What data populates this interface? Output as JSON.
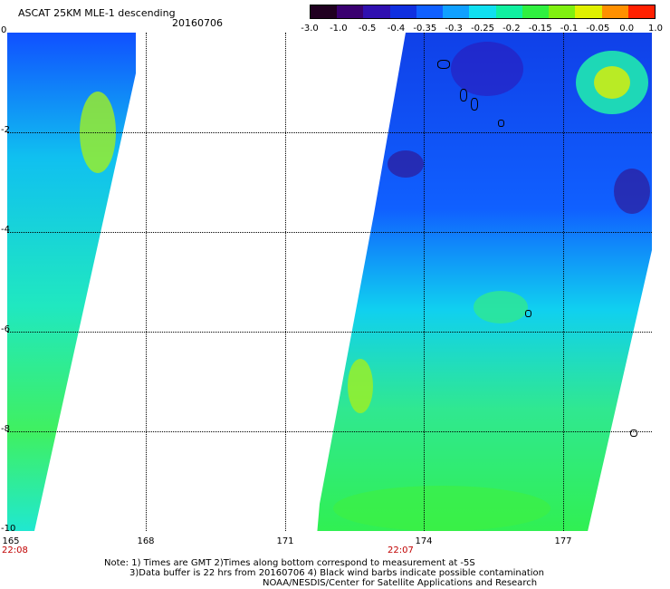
{
  "header": {
    "title": "ASCAT 25KM MLE-1 descending",
    "date": "20160706"
  },
  "colorbar": {
    "labels": [
      "-3.0",
      "-1.0",
      "-0.5",
      "-0.4",
      "-0.35",
      "-0.3",
      "-0.25",
      "-0.2",
      "-0.15",
      "-0.1",
      "-0.05",
      "0.0",
      "1.0"
    ],
    "colors": [
      "#200020",
      "#3a0070",
      "#3010b0",
      "#1030e0",
      "#1060ff",
      "#10a0ff",
      "#10e0f0",
      "#10f0a0",
      "#30f040",
      "#80f010",
      "#e0f000",
      "#ff9000",
      "#ff2000"
    ]
  },
  "axes": {
    "y_labels": [
      "0",
      "-2",
      "-4",
      "-6",
      "-8",
      "-10"
    ],
    "x_labels": [
      "165",
      "168",
      "171",
      "174",
      "177"
    ]
  },
  "times": {
    "left": "22:08",
    "right": "22:07"
  },
  "notes": {
    "line1": "Note: 1) Times are GMT 2)Times along bottom correspond to measurement at -5S",
    "line2": "3)Data buffer is 22 hrs from 20160706 4) Black wind barbs indicate possible contamination",
    "line3": "NOAA/NESDIS/Center for Satellite Applications and Research"
  }
}
